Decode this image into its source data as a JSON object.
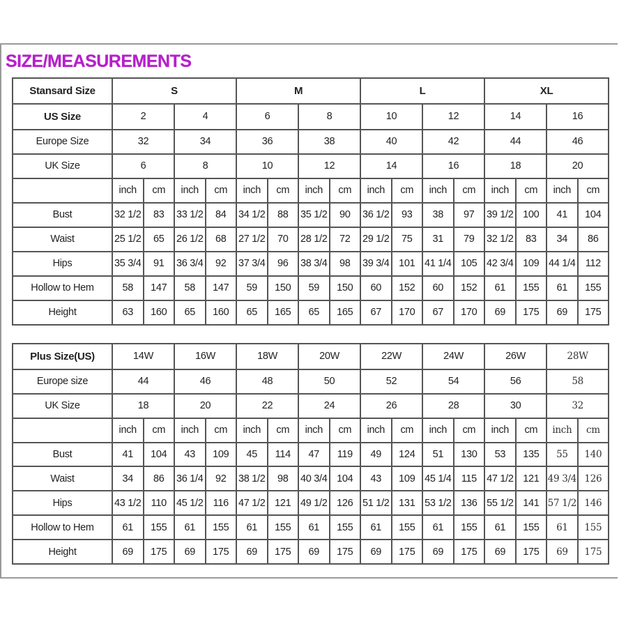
{
  "title": "SIZE/MEASUREMENTS",
  "colors": {
    "title": "#b520c9",
    "border": "#555555"
  },
  "standard": {
    "header_label": "Stansard Size",
    "groups": [
      "S",
      "M",
      "L",
      "XL"
    ],
    "size_rows": [
      {
        "label": "US Size",
        "values": [
          "2",
          "4",
          "6",
          "8",
          "10",
          "12",
          "14",
          "16"
        ]
      },
      {
        "label": "Europe Size",
        "values": [
          "32",
          "34",
          "36",
          "38",
          "40",
          "42",
          "44",
          "46"
        ]
      },
      {
        "label": "UK Size",
        "values": [
          "6",
          "8",
          "10",
          "12",
          "14",
          "16",
          "18",
          "20"
        ]
      }
    ],
    "units": [
      "inch",
      "cm",
      "inch",
      "cm",
      "inch",
      "cm",
      "inch",
      "cm",
      "inch",
      "cm",
      "inch",
      "cm",
      "inch",
      "cm",
      "inch",
      "cm"
    ],
    "measurements": [
      {
        "label": "Bust",
        "values": [
          "32 1/2",
          "83",
          "33 1/2",
          "84",
          "34 1/2",
          "88",
          "35 1/2",
          "90",
          "36 1/2",
          "93",
          "38",
          "97",
          "39 1/2",
          "100",
          "41",
          "104"
        ]
      },
      {
        "label": "Waist",
        "values": [
          "25 1/2",
          "65",
          "26 1/2",
          "68",
          "27 1/2",
          "70",
          "28 1/2",
          "72",
          "29 1/2",
          "75",
          "31",
          "79",
          "32 1/2",
          "83",
          "34",
          "86"
        ]
      },
      {
        "label": "Hips",
        "values": [
          "35 3/4",
          "91",
          "36 3/4",
          "92",
          "37 3/4",
          "96",
          "38 3/4",
          "98",
          "39 3/4",
          "101",
          "41 1/4",
          "105",
          "42 3/4",
          "109",
          "44 1/4",
          "112"
        ]
      },
      {
        "label": "Hollow to Hem",
        "values": [
          "58",
          "147",
          "58",
          "147",
          "59",
          "150",
          "59",
          "150",
          "60",
          "152",
          "60",
          "152",
          "61",
          "155",
          "61",
          "155"
        ]
      },
      {
        "label": "Height",
        "values": [
          "63",
          "160",
          "65",
          "160",
          "65",
          "165",
          "65",
          "165",
          "67",
          "170",
          "67",
          "170",
          "69",
          "175",
          "69",
          "175"
        ]
      }
    ]
  },
  "plus": {
    "header_label": "Plus Size(US)",
    "sizes": [
      "14W",
      "16W",
      "18W",
      "20W",
      "22W",
      "24W",
      "26W",
      "28W"
    ],
    "size_rows": [
      {
        "label": "Europe size",
        "values": [
          "44",
          "46",
          "48",
          "50",
          "52",
          "54",
          "56",
          "58"
        ]
      },
      {
        "label": "UK Size",
        "values": [
          "18",
          "20",
          "22",
          "24",
          "26",
          "28",
          "30",
          "32"
        ]
      }
    ],
    "units": [
      "inch",
      "cm",
      "inch",
      "cm",
      "inch",
      "cm",
      "inch",
      "cm",
      "inch",
      "cm",
      "inch",
      "cm",
      "inch",
      "cm",
      "inch",
      "cm"
    ],
    "measurements": [
      {
        "label": "Bust",
        "values": [
          "41",
          "104",
          "43",
          "109",
          "45",
          "114",
          "47",
          "119",
          "49",
          "124",
          "51",
          "130",
          "53",
          "135",
          "55",
          "140"
        ]
      },
      {
        "label": "Waist",
        "values": [
          "34",
          "86",
          "36 1/4",
          "92",
          "38 1/2",
          "98",
          "40 3/4",
          "104",
          "43",
          "109",
          "45 1/4",
          "115",
          "47 1/2",
          "121",
          "49 3/4",
          "126"
        ]
      },
      {
        "label": "Hips",
        "values": [
          "43 1/2",
          "110",
          "45 1/2",
          "116",
          "47 1/2",
          "121",
          "49 1/2",
          "126",
          "51 1/2",
          "131",
          "53 1/2",
          "136",
          "55 1/2",
          "141",
          "57 1/2",
          "146"
        ]
      },
      {
        "label": "Hollow to Hem",
        "values": [
          "61",
          "155",
          "61",
          "155",
          "61",
          "155",
          "61",
          "155",
          "61",
          "155",
          "61",
          "155",
          "61",
          "155",
          "61",
          "155"
        ]
      },
      {
        "label": "Height",
        "values": [
          "69",
          "175",
          "69",
          "175",
          "69",
          "175",
          "69",
          "175",
          "69",
          "175",
          "69",
          "175",
          "69",
          "175",
          "69",
          "175"
        ]
      }
    ]
  }
}
